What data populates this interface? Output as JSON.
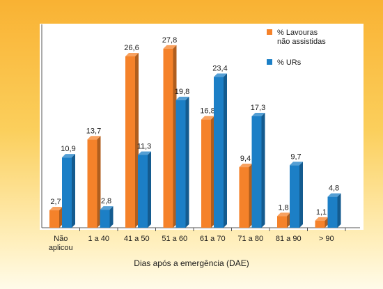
{
  "chart_data": {
    "type": "bar",
    "xlabel": "Dias após a emergência (DAE)",
    "ylabel": "",
    "title": "",
    "ylim": [
      0,
      30
    ],
    "grid": false,
    "legend_position": "top-right",
    "categories": [
      [
        "Não",
        "aplicou"
      ],
      [
        "1 a 40"
      ],
      [
        "41 a 50"
      ],
      [
        "51 a 60"
      ],
      [
        "61 a 70"
      ],
      [
        "71 a 80"
      ],
      [
        "81 a 90"
      ],
      [
        "> 90"
      ]
    ],
    "series": [
      {
        "name": [
          "% Lavouras",
          "não assistidas"
        ],
        "color": "#f5822a",
        "values": [
          2.7,
          13.7,
          26.6,
          27.8,
          16.8,
          9.4,
          1.8,
          1.1
        ],
        "labels": [
          "2,7",
          "13,7",
          "26,6",
          "27,8",
          "16,8",
          "9,4",
          "1,8",
          "1,1"
        ]
      },
      {
        "name": [
          "% URs"
        ],
        "color": "#1c7fc6",
        "values": [
          10.9,
          2.8,
          11.3,
          19.8,
          23.4,
          17.3,
          9.7,
          4.8
        ],
        "labels": [
          "10,9",
          "2,8",
          "11,3",
          "19,8",
          "23,4",
          "17,3",
          "9,7",
          "4,8"
        ]
      }
    ]
  }
}
